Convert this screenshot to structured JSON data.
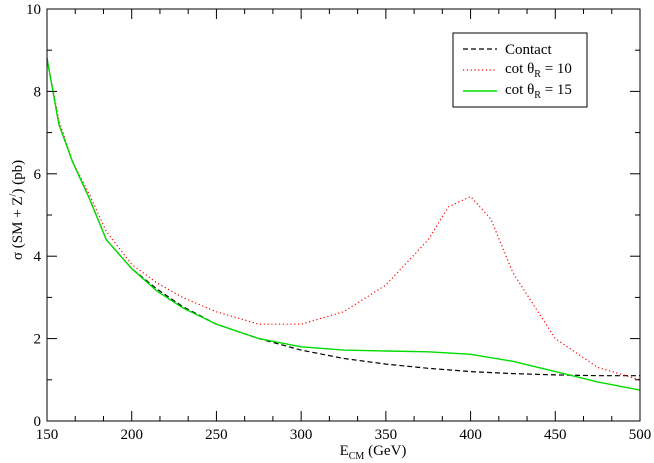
{
  "chart_data": {
    "type": "line",
    "title": "",
    "xlabel": {
      "main": "E",
      "sub": "CM",
      "rest": " (GeV)"
    },
    "ylabel": {
      "prefix": "σ (SM + Z",
      "prime": "/",
      "suffix": ") (pb)"
    },
    "xlim": [
      150,
      500
    ],
    "ylim": [
      0,
      10
    ],
    "xticks": [
      150,
      200,
      250,
      300,
      350,
      400,
      450,
      500
    ],
    "yticks": [
      0,
      2,
      4,
      6,
      8,
      10
    ],
    "grid": false,
    "legend_position": "top-right",
    "series": [
      {
        "name": "Contact",
        "legend": {
          "text": "Contact"
        },
        "color": "#000000",
        "style": "dashed",
        "x": [
          150,
          157,
          165,
          175,
          185,
          200,
          215,
          230,
          250,
          275,
          300,
          325,
          350,
          375,
          400,
          425,
          450,
          475,
          500
        ],
        "y": [
          8.8,
          7.2,
          6.3,
          5.4,
          4.4,
          3.7,
          3.2,
          2.78,
          2.35,
          2.0,
          1.72,
          1.52,
          1.38,
          1.28,
          1.2,
          1.15,
          1.12,
          1.1,
          1.1
        ]
      },
      {
        "name": "cot θR = 10",
        "legend": {
          "main": "cot θ",
          "sub": "R",
          "rest": " = 10"
        },
        "color": "#ff0000",
        "style": "dotted",
        "x": [
          150,
          157,
          165,
          175,
          185,
          200,
          215,
          230,
          250,
          275,
          300,
          325,
          350,
          375,
          387,
          400,
          412,
          425,
          450,
          475,
          500
        ],
        "y": [
          8.8,
          7.3,
          6.3,
          5.5,
          4.6,
          3.8,
          3.35,
          3.0,
          2.65,
          2.35,
          2.35,
          2.65,
          3.3,
          4.4,
          5.2,
          5.45,
          4.9,
          3.6,
          2.0,
          1.3,
          1.0
        ]
      },
      {
        "name": "cot θR = 15",
        "legend": {
          "main": "cot θ",
          "sub": "R",
          "rest": " = 15"
        },
        "color": "#00dd00",
        "style": "solid",
        "x": [
          150,
          157,
          165,
          175,
          185,
          200,
          215,
          230,
          250,
          275,
          300,
          325,
          350,
          375,
          400,
          425,
          450,
          475,
          500
        ],
        "y": [
          8.8,
          7.2,
          6.3,
          5.4,
          4.4,
          3.7,
          3.15,
          2.75,
          2.35,
          2.0,
          1.8,
          1.72,
          1.7,
          1.68,
          1.62,
          1.45,
          1.2,
          0.95,
          0.75
        ]
      }
    ]
  }
}
